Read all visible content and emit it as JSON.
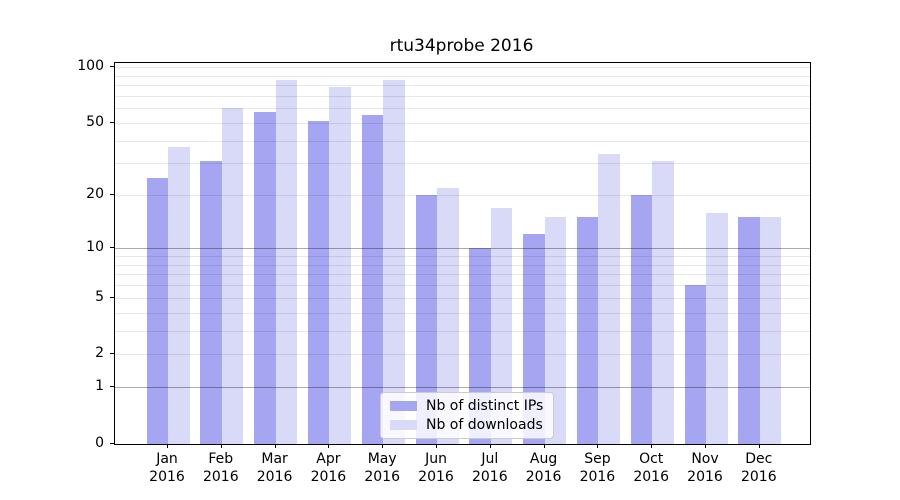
{
  "chart_data": {
    "type": "bar",
    "title": "rtu34probe 2016",
    "categories": [
      "Jan",
      "Feb",
      "Mar",
      "Apr",
      "May",
      "Jun",
      "Jul",
      "Aug",
      "Sep",
      "Oct",
      "Nov",
      "Dec"
    ],
    "x_tick_second_line": "2016",
    "series": [
      {
        "name": "Nb of distinct IPs",
        "color": "#a5a5f2",
        "values": [
          25,
          31,
          57,
          51,
          55,
          20,
          10,
          12,
          15,
          20,
          6,
          15
        ]
      },
      {
        "name": "Nb of downloads",
        "color": "#d9d9f8",
        "values": [
          37,
          60,
          85,
          78,
          85,
          22,
          17,
          15,
          34,
          31,
          16,
          15
        ]
      }
    ],
    "xlabel": "",
    "ylabel": "",
    "yscale": "log1p",
    "ylim": [
      0,
      105
    ],
    "y_tick_values": [
      0,
      1,
      2,
      5,
      10,
      20,
      50,
      100
    ],
    "minor_gridline_values": [
      3,
      4,
      6,
      7,
      8,
      9,
      30,
      40,
      60,
      70,
      80,
      90
    ],
    "major_gridline_values": [
      2,
      5,
      20,
      50,
      100
    ],
    "emphasized_gridline_values": [
      1,
      10
    ],
    "grid": true,
    "legend_position": "lower center",
    "frame_color": "#000000",
    "background_color": "#ffffff"
  }
}
